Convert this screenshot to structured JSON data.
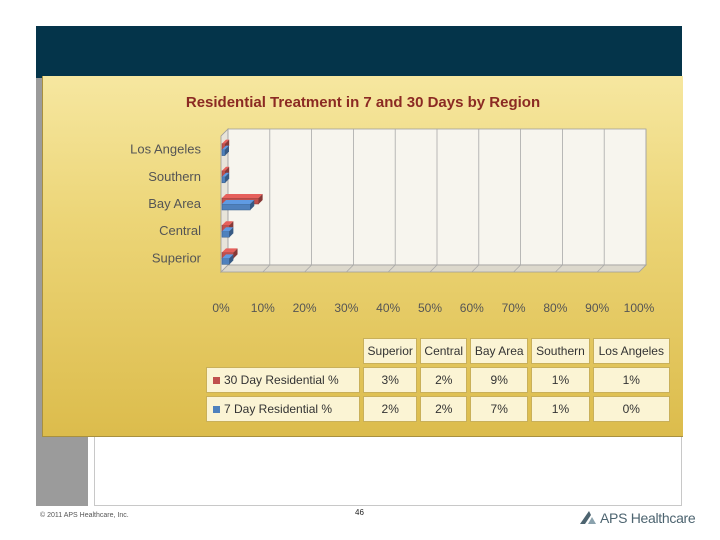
{
  "footer": {
    "copyright": "© 2011 APS Healthcare, Inc.",
    "page_number": "46",
    "logo_text": "APS Healthcare"
  },
  "chart_data": {
    "type": "bar",
    "orientation": "horizontal",
    "title": "Residential Treatment in 7 and 30 Days by Region",
    "categories": [
      "Los Angeles",
      "Southern",
      "Bay Area",
      "Central",
      "Superior"
    ],
    "x_ticks": [
      "0%",
      "10%",
      "20%",
      "30%",
      "40%",
      "50%",
      "60%",
      "70%",
      "80%",
      "90%",
      "100%"
    ],
    "xlim": [
      0,
      100
    ],
    "grid": true,
    "series": [
      {
        "name": "30 Day Residential %",
        "color": "#c0504d",
        "values": [
          1,
          1,
          9,
          2,
          3
        ],
        "labels": [
          "1%",
          "1%",
          "9%",
          "2%",
          "3%"
        ]
      },
      {
        "name": "7 Day Residential %",
        "color": "#4f81bd",
        "values": [
          0,
          1,
          7,
          2,
          2
        ],
        "labels": [
          "0%",
          "1%",
          "7%",
          "2%",
          "2%"
        ]
      }
    ],
    "table": {
      "columns": [
        "Superior",
        "Central",
        "Bay Area",
        "Southern",
        "Los Angeles"
      ],
      "rows": [
        {
          "label": "30 Day Residential %",
          "color": "#c0504d",
          "values": [
            "3%",
            "2%",
            "9%",
            "1%",
            "1%"
          ]
        },
        {
          "label": "7 Day Residential %",
          "color": "#4f81bd",
          "values": [
            "2%",
            "2%",
            "7%",
            "1%",
            "0%"
          ]
        }
      ]
    }
  }
}
